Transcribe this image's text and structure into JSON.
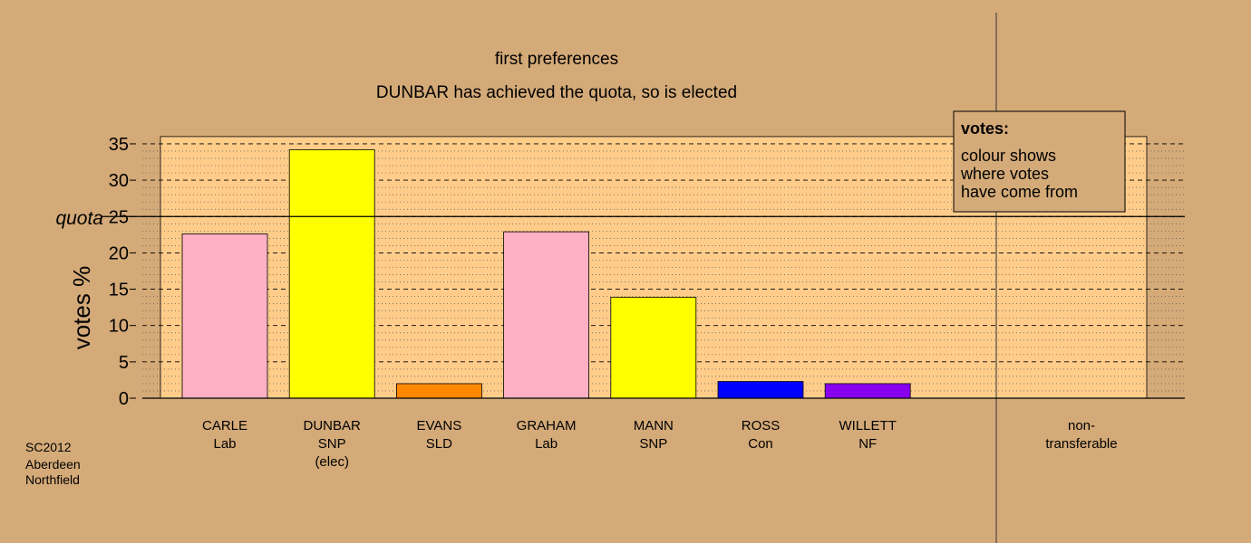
{
  "chart_data": {
    "type": "bar",
    "title": "first preferences",
    "subtitle": "DUNBAR has achieved the quota, so is elected",
    "ylabel": "votes %",
    "ylim": [
      0,
      36
    ],
    "yticks": [
      0,
      5,
      10,
      15,
      20,
      25,
      30,
      35
    ],
    "quota": {
      "label": "quota",
      "value": 25
    },
    "grid": "dotted-minor-dashed-major",
    "bars": [
      {
        "name": "CARLE",
        "party": "Lab",
        "note": "",
        "value": 22.6,
        "color": "#ffb0c4"
      },
      {
        "name": "DUNBAR",
        "party": "SNP",
        "note": "(elec)",
        "value": 34.2,
        "color": "#ffff00"
      },
      {
        "name": "EVANS",
        "party": "SLD",
        "note": "",
        "value": 2.0,
        "color": "#ff8800"
      },
      {
        "name": "GRAHAM",
        "party": "Lab",
        "note": "",
        "value": 22.9,
        "color": "#ffb0c4"
      },
      {
        "name": "MANN",
        "party": "SNP",
        "note": "",
        "value": 13.9,
        "color": "#ffff00"
      },
      {
        "name": "ROSS",
        "party": "Con",
        "note": "",
        "value": 2.3,
        "color": "#0000ff"
      },
      {
        "name": "WILLETT",
        "party": "NF",
        "note": "",
        "value": 2.0,
        "color": "#8800ee"
      }
    ],
    "nontransferable": {
      "label_line1": "non-",
      "label_line2": "transferable",
      "value": 0
    },
    "legend": {
      "placement": "top-right",
      "title": "votes:",
      "lines": [
        "colour shows",
        "where votes",
        "have come from"
      ]
    },
    "source": [
      "SC2012",
      "Aberdeen",
      "Northfield"
    ]
  },
  "colors": {
    "background": "#d4aa78",
    "plot_area": "#ffcc8a",
    "legend_box": "#d4aa78"
  }
}
